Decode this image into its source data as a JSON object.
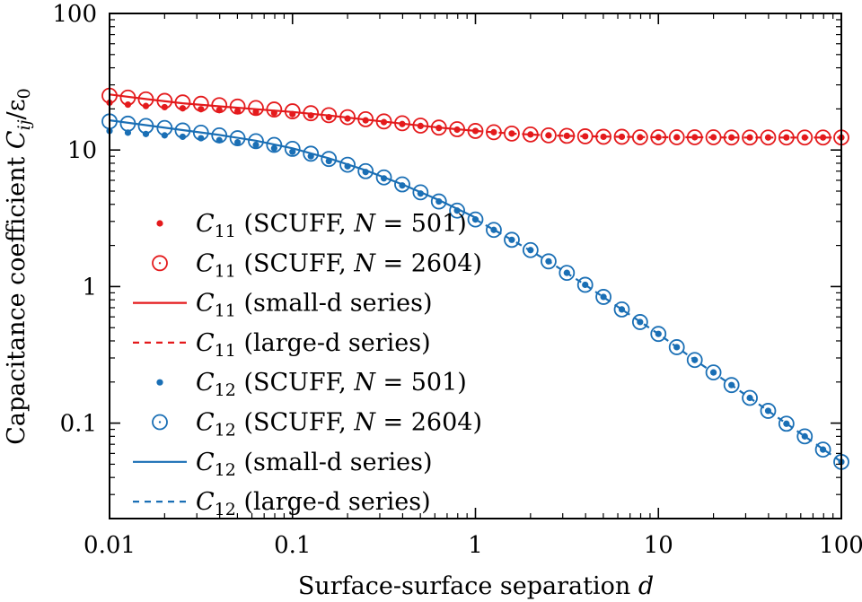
{
  "chart_data": {
    "type": "scatter",
    "xlabel_text": "Surface-surface separation",
    "xlabel_var": "d",
    "ylabel_text": "Capacitance coefficient",
    "ylabel_var": "C",
    "ylabel_sub": "ij",
    "ylabel_div": "/ε",
    "ylabel_div_sub": "0",
    "xscale": "log",
    "yscale": "log",
    "xlim": [
      0.01,
      100
    ],
    "ylim": [
      0.02,
      100
    ],
    "xticks": [
      0.01,
      0.1,
      1,
      10,
      100
    ],
    "xtick_labels": [
      "0.01",
      "0.1",
      "1",
      "10",
      "100"
    ],
    "yticks": [
      0.1,
      1,
      10,
      100
    ],
    "ytick_labels": [
      "0.1",
      "1",
      "10",
      "100"
    ],
    "grid": false,
    "legend_position": "left",
    "colors": {
      "red": "#e41a1c",
      "blue": "#1a6fb5"
    },
    "series": [
      {
        "name": "C11 (SCUFF, N = 501)",
        "var": "C",
        "sub": "11",
        "desc": "(SCUFF, ",
        "nvar": "N",
        "nval": " = 501)",
        "color": "#e41a1c",
        "marker": "dot",
        "x": [
          0.01,
          0.0126,
          0.0158,
          0.02,
          0.0251,
          0.0316,
          0.0398,
          0.0501,
          0.0631,
          0.0794,
          0.1,
          0.126,
          0.158,
          0.2,
          0.251,
          0.316,
          0.398,
          0.501,
          0.631,
          0.794,
          1,
          1.26,
          1.58,
          2,
          2.51,
          3.16,
          3.98,
          5.01,
          6.31,
          7.94,
          10,
          12.6,
          15.8,
          20,
          25.1,
          31.6,
          39.8,
          50.1,
          63.1,
          79.4,
          100
        ],
        "y": [
          22.2,
          21.5,
          21.0,
          20.6,
          20.2,
          19.9,
          19.6,
          19.3,
          19.0,
          18.7,
          18.3,
          17.9,
          17.4,
          17.0,
          16.5,
          16.0,
          15.5,
          15.0,
          14.5,
          14.1,
          13.8,
          13.5,
          13.2,
          13.0,
          12.8,
          12.7,
          12.6,
          12.5,
          12.5,
          12.4,
          12.4,
          12.4,
          12.4,
          12.4,
          12.35,
          12.35,
          12.35,
          12.35,
          12.35,
          12.35,
          12.35
        ]
      },
      {
        "name": "C11 (SCUFF, N = 2604)",
        "var": "C",
        "sub": "11",
        "desc": "(SCUFF, ",
        "nvar": "N",
        "nval": " = 2604)",
        "color": "#e41a1c",
        "marker": "ring",
        "x": [
          0.01,
          0.0126,
          0.0158,
          0.02,
          0.0251,
          0.0316,
          0.0398,
          0.0501,
          0.0631,
          0.0794,
          0.1,
          0.126,
          0.158,
          0.2,
          0.251,
          0.316,
          0.398,
          0.501,
          0.631,
          0.794,
          1,
          1.26,
          1.58,
          2,
          2.51,
          3.16,
          3.98,
          5.01,
          6.31,
          7.94,
          10,
          12.6,
          15.8,
          20,
          25.1,
          31.6,
          39.8,
          50.1,
          63.1,
          79.4,
          100
        ],
        "y": [
          25.0,
          24.2,
          23.5,
          22.9,
          22.3,
          21.8,
          21.3,
          20.8,
          20.3,
          19.8,
          19.2,
          18.6,
          18.0,
          17.4,
          16.8,
          16.2,
          15.7,
          15.1,
          14.6,
          14.2,
          13.8,
          13.5,
          13.2,
          13.0,
          12.8,
          12.7,
          12.6,
          12.5,
          12.5,
          12.4,
          12.4,
          12.4,
          12.4,
          12.4,
          12.35,
          12.35,
          12.35,
          12.35,
          12.35,
          12.35,
          12.35
        ]
      },
      {
        "name": "C11 (small-d series)",
        "var": "C",
        "sub": "11",
        "desc": "(small-d series)",
        "color": "#e41a1c",
        "marker": "solid",
        "x": [
          0.01,
          0.0158,
          0.0251,
          0.0398,
          0.0631,
          0.1,
          0.158,
          0.251,
          0.398,
          0.631,
          1
        ],
        "y": [
          25.5,
          23.6,
          22.0,
          20.9,
          19.9,
          19.0,
          17.9,
          16.7,
          15.6,
          14.6,
          13.8
        ]
      },
      {
        "name": "C11 (large-d series)",
        "var": "C",
        "sub": "11",
        "desc": "(large-d series)",
        "color": "#e41a1c",
        "marker": "dashed",
        "x": [
          1,
          1.58,
          2.51,
          3.98,
          6.31,
          10,
          15.8,
          25.1,
          39.8,
          63.1,
          100
        ],
        "y": [
          13.8,
          13.2,
          12.8,
          12.6,
          12.5,
          12.4,
          12.4,
          12.35,
          12.35,
          12.35,
          12.35
        ]
      },
      {
        "name": "C12 (SCUFF, N = 501)",
        "var": "C",
        "sub": "12",
        "desc": "(SCUFF, ",
        "nvar": "N",
        "nval": " = 501)",
        "color": "#1a6fb5",
        "marker": "dot",
        "x": [
          0.01,
          0.0126,
          0.0158,
          0.02,
          0.0251,
          0.0316,
          0.0398,
          0.0501,
          0.0631,
          0.0794,
          0.1,
          0.126,
          0.158,
          0.2,
          0.251,
          0.316,
          0.398,
          0.501,
          0.631,
          0.794,
          1,
          1.26,
          1.58,
          2,
          2.51,
          3.16,
          3.98,
          5.01,
          6.31,
          7.94,
          10,
          12.6,
          15.8,
          20,
          25.1,
          31.6,
          39.8,
          50.1,
          63.1,
          79.4,
          100
        ],
        "y": [
          13.8,
          13.4,
          13.1,
          12.8,
          12.5,
          12.2,
          11.8,
          11.4,
          10.9,
          10.3,
          9.7,
          9.0,
          8.3,
          7.6,
          6.9,
          6.2,
          5.5,
          4.8,
          4.2,
          3.6,
          3.1,
          2.6,
          2.2,
          1.85,
          1.53,
          1.26,
          1.03,
          0.84,
          0.68,
          0.55,
          0.45,
          0.36,
          0.29,
          0.235,
          0.19,
          0.153,
          0.123,
          0.099,
          0.08,
          0.064,
          0.052
        ]
      },
      {
        "name": "C12 (SCUFF, N = 2604)",
        "var": "C",
        "sub": "12",
        "desc": "(SCUFF, ",
        "nvar": "N",
        "nval": " = 2604)",
        "color": "#1a6fb5",
        "marker": "ring",
        "x": [
          0.01,
          0.0126,
          0.0158,
          0.02,
          0.0251,
          0.0316,
          0.0398,
          0.0501,
          0.0631,
          0.0794,
          0.1,
          0.126,
          0.158,
          0.2,
          0.251,
          0.316,
          0.398,
          0.501,
          0.631,
          0.794,
          1,
          1.26,
          1.58,
          2,
          2.51,
          3.16,
          3.98,
          5.01,
          6.31,
          7.94,
          10,
          12.6,
          15.8,
          20,
          25.1,
          31.6,
          39.8,
          50.1,
          63.1,
          79.4,
          100
        ],
        "y": [
          16.2,
          15.6,
          15.0,
          14.5,
          13.9,
          13.4,
          12.8,
          12.2,
          11.6,
          10.9,
          10.2,
          9.4,
          8.6,
          7.8,
          7.0,
          6.3,
          5.6,
          4.9,
          4.2,
          3.6,
          3.1,
          2.6,
          2.2,
          1.85,
          1.53,
          1.26,
          1.03,
          0.84,
          0.68,
          0.55,
          0.45,
          0.36,
          0.29,
          0.235,
          0.19,
          0.153,
          0.123,
          0.099,
          0.08,
          0.064,
          0.052
        ]
      },
      {
        "name": "C12 (small-d series)",
        "var": "C",
        "sub": "12",
        "desc": "(small-d series)",
        "color": "#1a6fb5",
        "marker": "solid",
        "x": [
          0.01,
          0.0158,
          0.0251,
          0.0398,
          0.0631,
          0.1,
          0.158,
          0.251,
          0.398,
          0.631,
          1
        ],
        "y": [
          16.5,
          15.2,
          14.0,
          12.9,
          11.7,
          10.3,
          8.7,
          7.1,
          5.6,
          4.3,
          3.2
        ]
      },
      {
        "name": "C12 (large-d series)",
        "var": "C",
        "sub": "12",
        "desc": "(large-d series)",
        "color": "#1a6fb5",
        "marker": "dashed",
        "x": [
          1,
          1.58,
          2.51,
          3.98,
          6.31,
          10,
          15.8,
          25.1,
          39.8,
          63.1,
          100
        ],
        "y": [
          3.1,
          2.2,
          1.53,
          1.03,
          0.68,
          0.45,
          0.29,
          0.19,
          0.123,
          0.08,
          0.052
        ]
      }
    ]
  }
}
